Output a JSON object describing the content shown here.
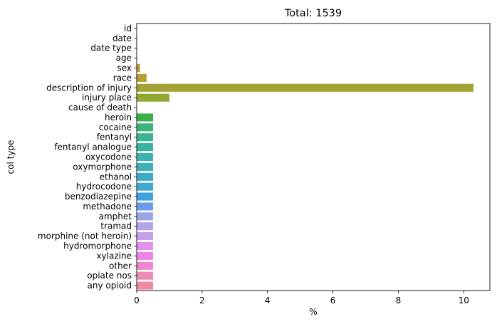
{
  "chart_data": {
    "type": "bar",
    "orientation": "horizontal",
    "title": "Total: 1539",
    "xlabel": "%",
    "ylabel": "col type",
    "xlim": [
      0,
      10.8
    ],
    "xticks": [
      0,
      2,
      4,
      6,
      8,
      10
    ],
    "grid": false,
    "categories": [
      "id",
      "date",
      "date type",
      "age",
      "sex",
      "race",
      "description of injury",
      "injury place",
      "cause of death",
      "heroin",
      "cocaine",
      "fentanyl",
      "fentanyl analogue",
      "oxycodone",
      "oxymorphone",
      "ethanol",
      "hydrocodone",
      "benzodiazepine",
      "methadone",
      "amphet",
      "tramad",
      "morphine (not heroin)",
      "hydromorphone",
      "xylazine",
      "other",
      "opiate nos",
      "any opioid"
    ],
    "values": [
      0,
      0,
      0,
      0,
      0.1,
      0.3,
      10.3,
      1.0,
      0,
      0.5,
      0.5,
      0.5,
      0.5,
      0.5,
      0.5,
      0.5,
      0.5,
      0.5,
      0.5,
      0.5,
      0.5,
      0.5,
      0.5,
      0.5,
      0.5,
      0.5,
      0.5
    ],
    "colors": [
      "#f37a7d",
      "#f07e5d",
      "#e4843f",
      "#d78d32",
      "#c9962f",
      "#b99d2f",
      "#a4a232",
      "#8ea831",
      "#6cad36",
      "#3ab04a",
      "#3db37b",
      "#3bb393",
      "#3ab3a2",
      "#3ab2af",
      "#3ab0bb",
      "#3cacc6",
      "#3ea8d1",
      "#3fa2df",
      "#6d9bec",
      "#9ca4e8",
      "#b4a4ea",
      "#c69ee9",
      "#dd93ea",
      "#f082e6",
      "#ee86cc",
      "#ec8ab8",
      "#f08ba4"
    ]
  }
}
